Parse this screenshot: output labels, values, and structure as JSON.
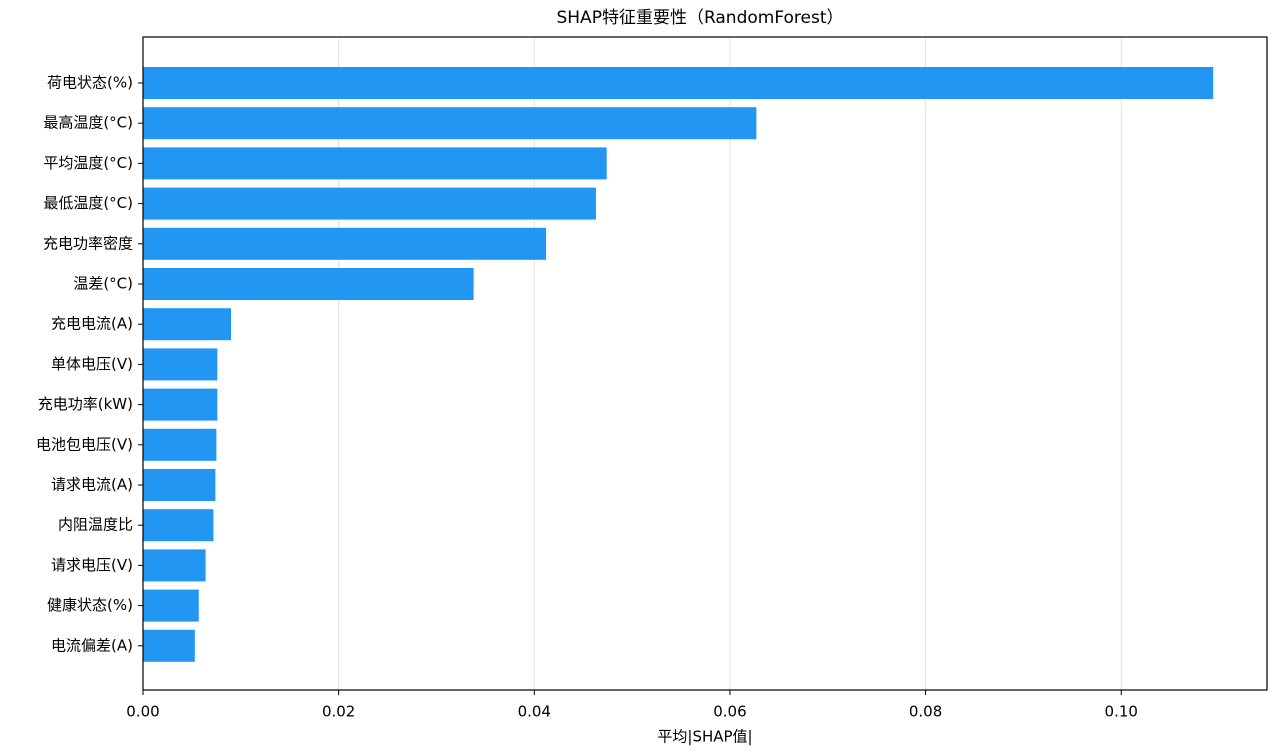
{
  "chart_data": {
    "type": "barh",
    "title": "SHAP特征重要性（RandomForest）",
    "x_label": "平均|SHAP值|",
    "categories": [
      "荷电状态(%)",
      "最高温度(°C)",
      "平均温度(°C)",
      "最低温度(°C)",
      "充电功率密度",
      "温差(°C)",
      "充电电流(A)",
      "单体电压(V)",
      "充电功率(kW)",
      "电池包电压(V)",
      "请求电流(A)",
      "内阻温度比",
      "请求电压(V)",
      "健康状态(%)",
      "电流偏差(A)"
    ],
    "values": [
      0.1094,
      0.0627,
      0.0474,
      0.0463,
      0.0412,
      0.0338,
      0.009,
      0.0076,
      0.0076,
      0.0075,
      0.0074,
      0.0072,
      0.0064,
      0.0057,
      0.0053
    ],
    "color": "#2196f3",
    "xlim": [
      0,
      0.1149
    ],
    "xticks": [
      {
        "value": 0,
        "label": "0.00"
      },
      {
        "value": 0.02,
        "label": "0.02"
      },
      {
        "value": 0.04,
        "label": "0.04"
      },
      {
        "value": 0.06,
        "label": "0.06"
      },
      {
        "value": 0.08,
        "label": "0.08"
      },
      {
        "value": 0.1,
        "label": "0.10"
      }
    ],
    "grid": true
  }
}
